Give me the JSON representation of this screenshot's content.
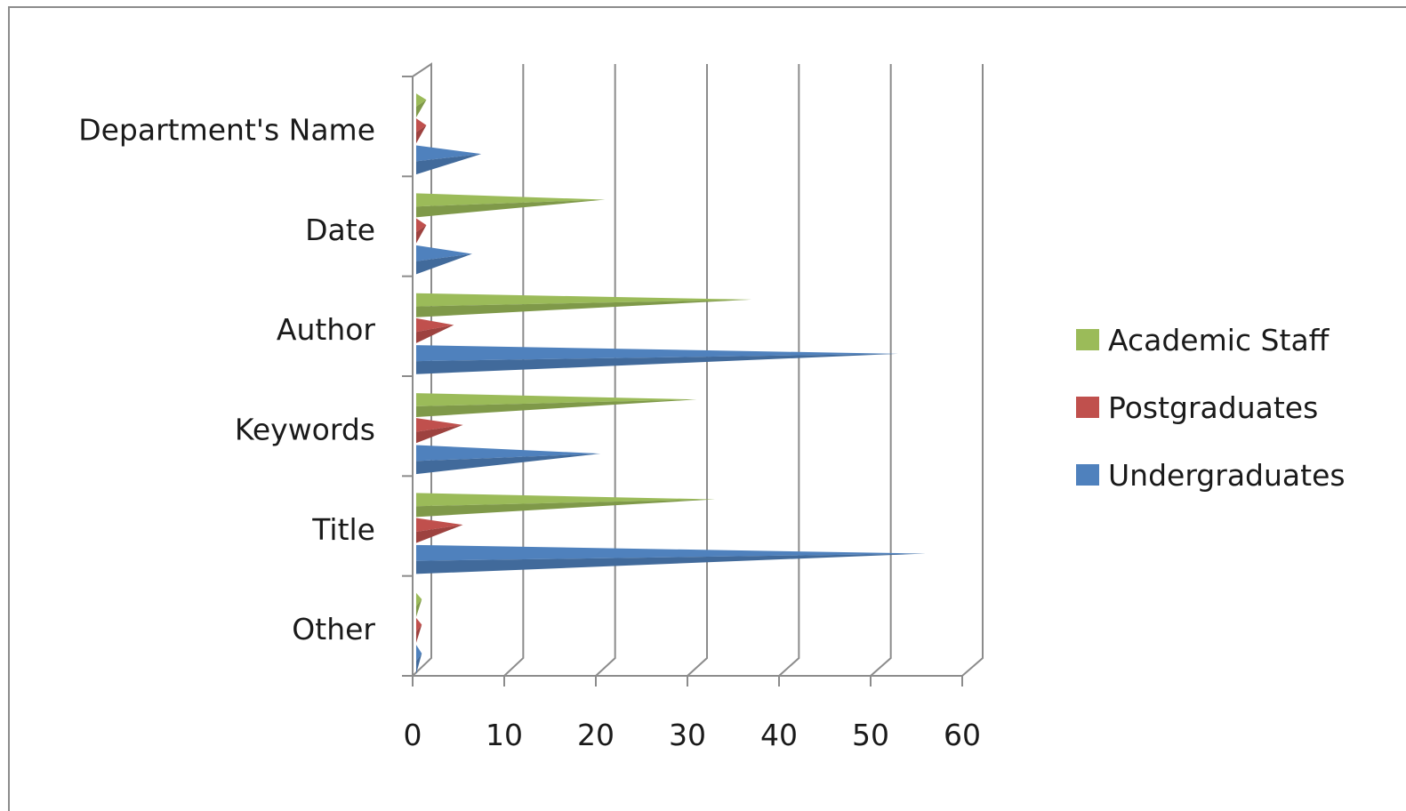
{
  "chart_data": {
    "type": "bar",
    "orientation": "horizontal",
    "style": "3d-cone",
    "categories": [
      "Department's Name",
      "Date",
      "Author",
      "Keywords",
      "Title",
      "Other"
    ],
    "series": [
      {
        "name": "Academic Staff",
        "color": "#9bbb59",
        "values": [
          1.5,
          21,
          37,
          31,
          33,
          1
        ]
      },
      {
        "name": "Postgraduates",
        "color": "#c0504d",
        "values": [
          1.5,
          1.5,
          4.5,
          5.5,
          5.5,
          1
        ]
      },
      {
        "name": "Undergraduates",
        "color": "#4f81bd",
        "values": [
          7.5,
          6.5,
          53,
          20.5,
          56,
          1
        ]
      }
    ],
    "xlim": [
      0,
      60
    ],
    "xticks": [
      "0",
      "10",
      "20",
      "30",
      "40",
      "50",
      "60"
    ],
    "grid": true,
    "legend": "right",
    "legend_order": [
      "Academic Staff",
      "Postgraduates",
      "Undergraduates"
    ],
    "title": "",
    "xlabel": "",
    "ylabel": ""
  }
}
